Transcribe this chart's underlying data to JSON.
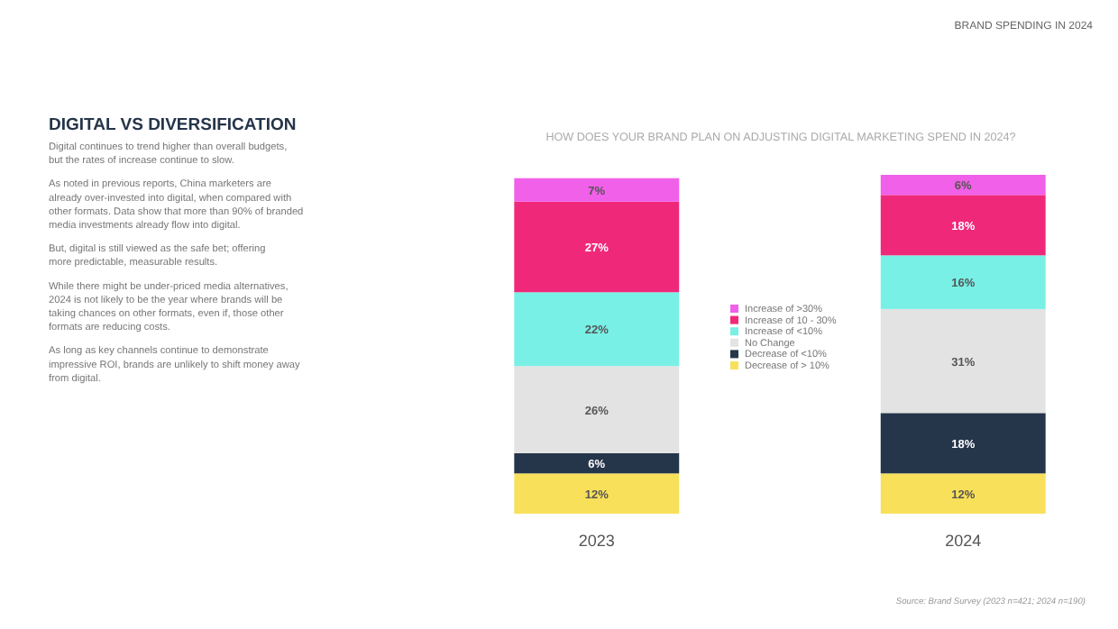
{
  "chart_data": {
    "type": "bar",
    "stacked": true,
    "title": "HOW DOES YOUR BRAND PLAN ON ADJUSTING DIGITAL MARKETING SPEND IN 2024?",
    "categories": [
      "2023",
      "2024"
    ],
    "series": [
      {
        "name": "Decrease of > 10%",
        "color": "#f8e05a",
        "values": [
          12,
          12
        ],
        "value_labels": [
          "12%",
          "12%"
        ]
      },
      {
        "name": "Decrease of <10%",
        "color": "#25354a",
        "values": [
          6,
          18
        ],
        "value_labels": [
          "6%",
          "18%"
        ]
      },
      {
        "name": "No Change",
        "color": "#e3e3e3",
        "values": [
          26,
          31
        ],
        "value_labels": [
          "26%",
          "31%"
        ]
      },
      {
        "name": "Increase of <10%",
        "color": "#78f0e6",
        "values": [
          22,
          16
        ],
        "value_labels": [
          "22%",
          "16%"
        ]
      },
      {
        "name": "Increase of 10 - 30%",
        "color": "#f0287a",
        "values": [
          27,
          18
        ],
        "value_labels": [
          "27%",
          "18%"
        ]
      },
      {
        "name": "Increase of >30%",
        "color": "#f060e8",
        "values": [
          7,
          6
        ],
        "value_labels": [
          "7%",
          "6%"
        ]
      }
    ],
    "legend": "center",
    "tick_labels": "x",
    "annotations": [
      "BRAND SPENDING IN 2024",
      "DIGITAL VS DIVERSIFICATION",
      "Digital continues to trend higher than overall budgets, but the rates of increase continue to slow.",
      "As noted in previous reports, China marketers are already over-invested into digital, when compared with other formats. Data show that more than 90% of branded media investments already flow into digital.",
      "But, digital is still viewed as the safe bet; offering more predictable, measurable results.",
      "While there might be under-priced media alternatives, 2024 is not likely to be the year where brands will be taking chances on other formats, even if, those other formats are reducing costs.",
      "As long as key channels continue to demonstrate impressive ROI, brands are unlikely to shift money away from digital.",
      "Source: Brand Survey (2023 n=421; 2024 n=190)"
    ]
  }
}
